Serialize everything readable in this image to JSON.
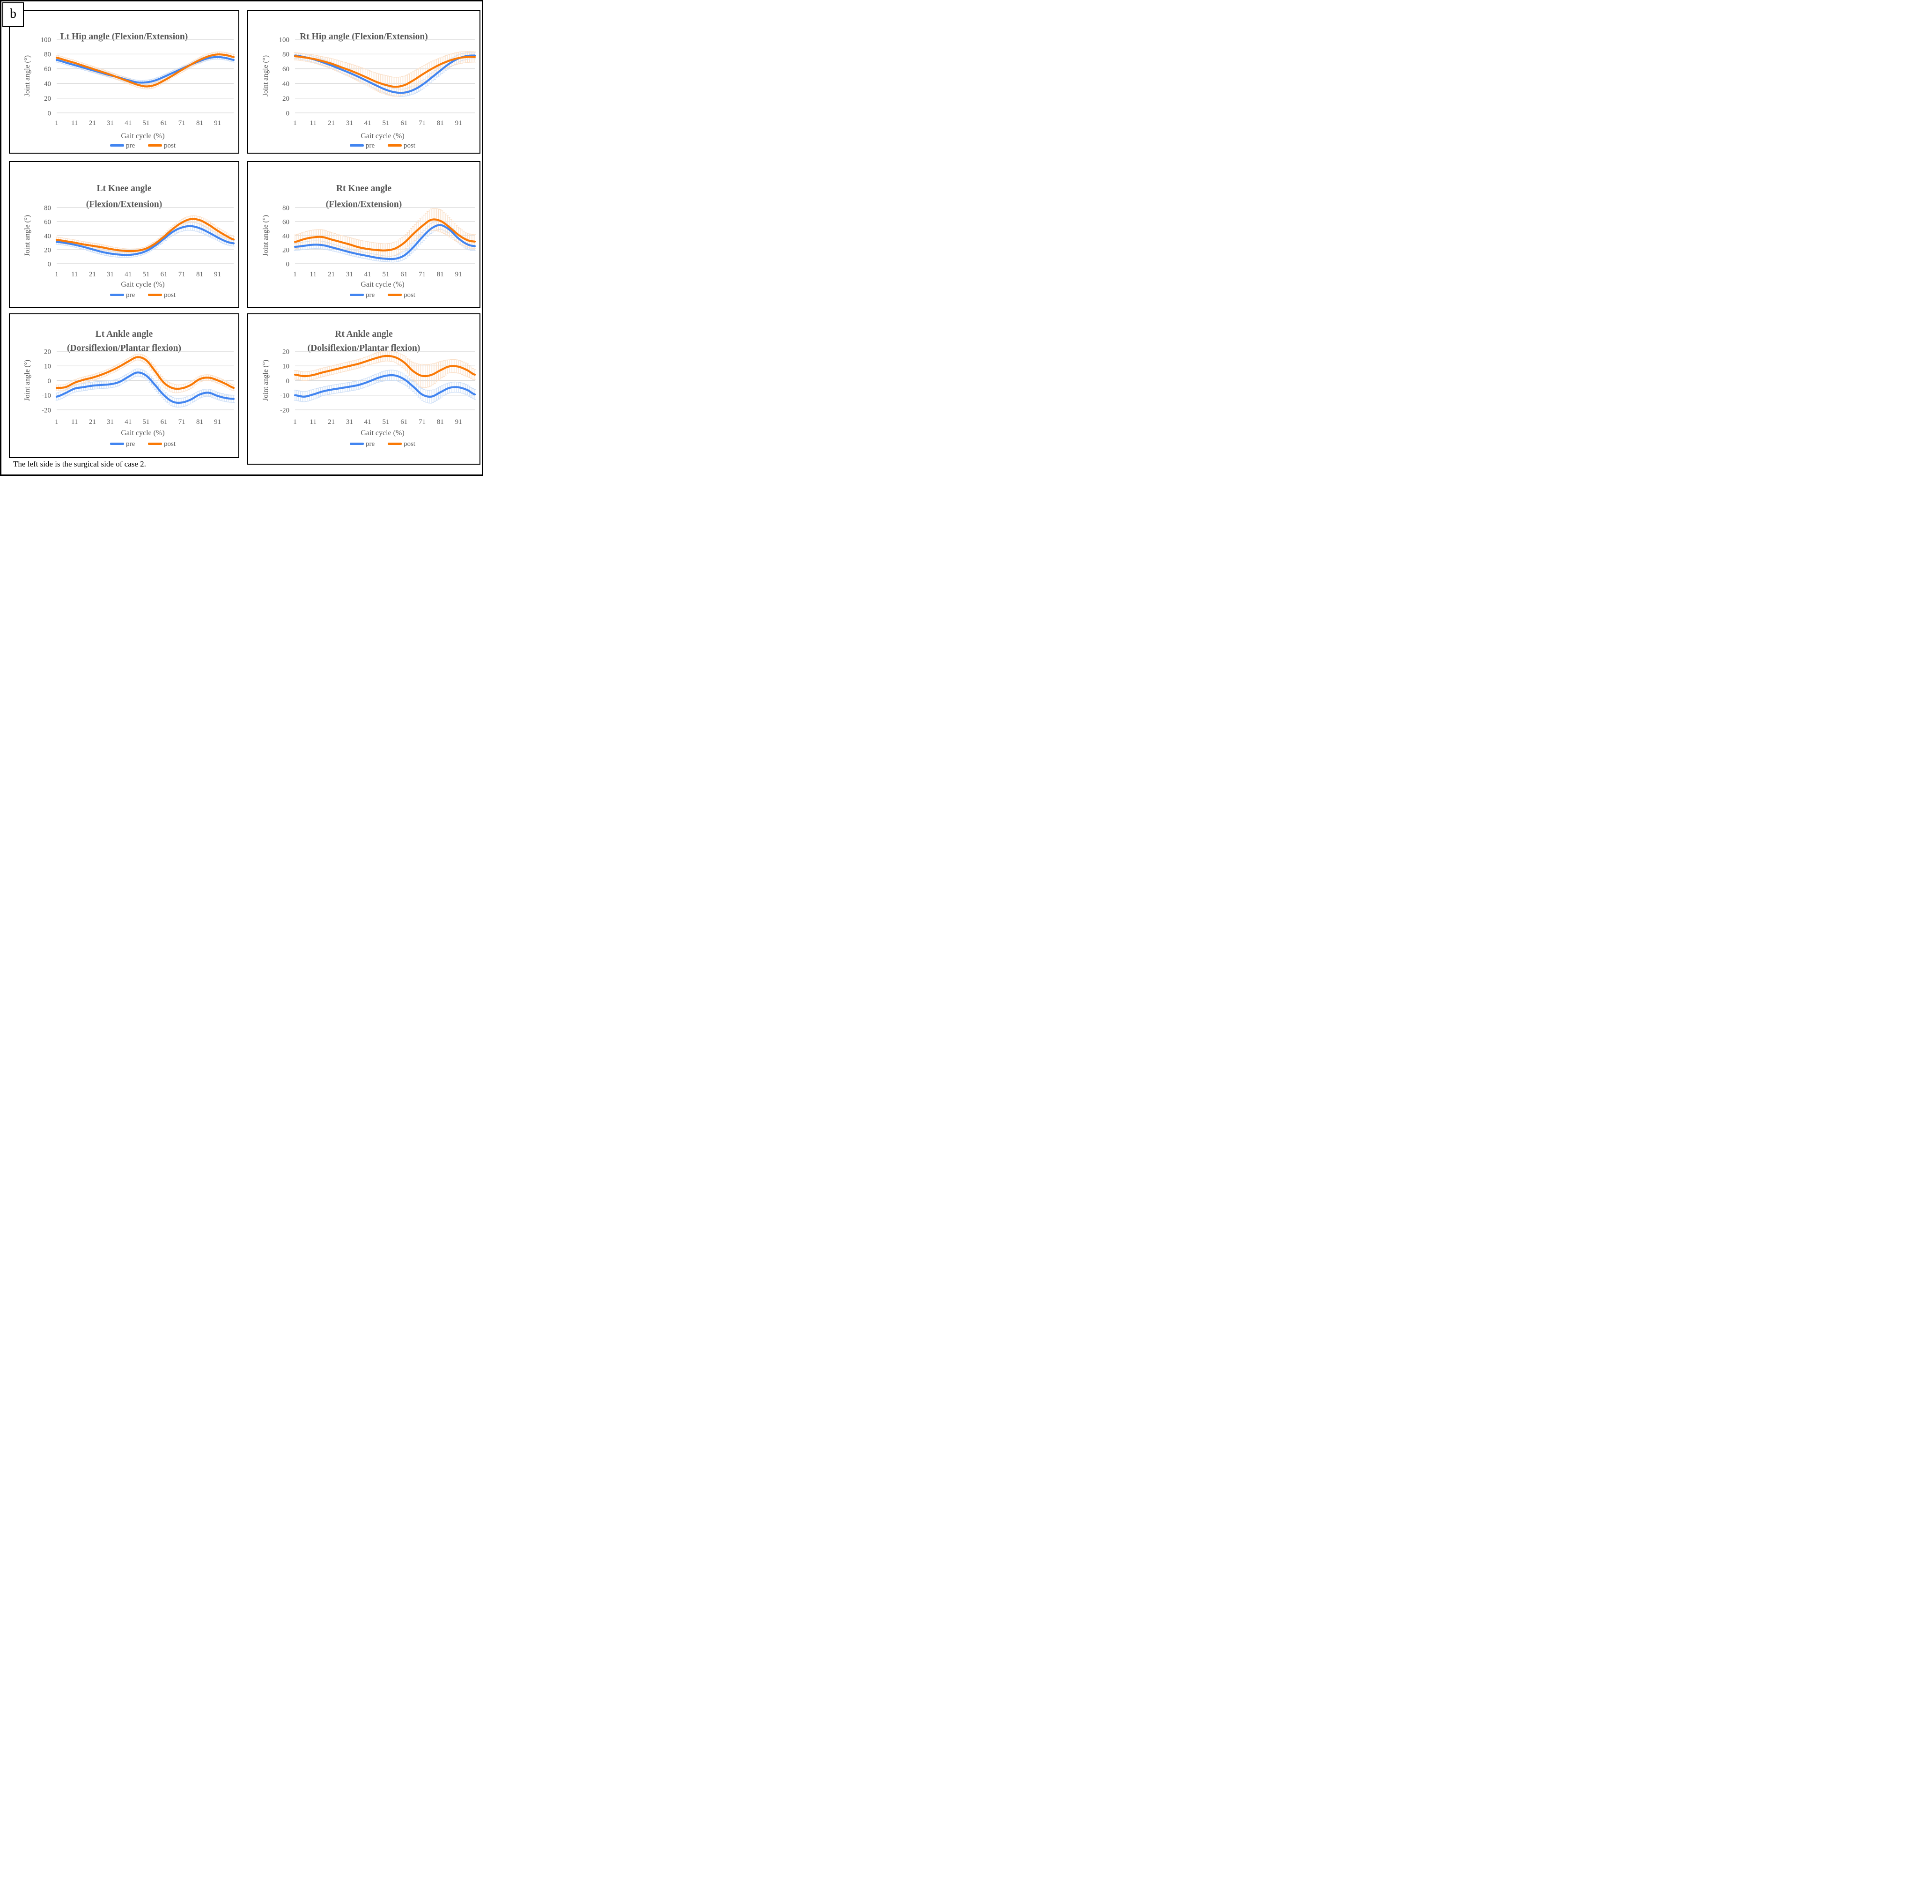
{
  "figure": {
    "label": "b",
    "caption": "The left side is the surgical side of case 2."
  },
  "colors": {
    "pre": "#4285F0",
    "post": "#F97906",
    "pre_band": "#CCDEF6",
    "post_band": "#FADFC7",
    "grid": "#D8D8D8",
    "text_gray": "#595959"
  },
  "chart_data": [
    {
      "type": "line",
      "title_lines": [
        "Lt Hip angle (Flexion/Extension)"
      ],
      "ylabel": "Joint angle (°)",
      "xlabel": "Gait cycle (%)",
      "ylim": [
        0,
        100
      ],
      "yticks": [
        0,
        20,
        40,
        60,
        80,
        100
      ],
      "xlim": [
        1,
        100
      ],
      "xticks": [
        1,
        11,
        21,
        31,
        41,
        51,
        61,
        71,
        81,
        91
      ],
      "x": [
        1,
        6,
        11,
        16,
        21,
        26,
        31,
        36,
        41,
        46,
        51,
        56,
        61,
        66,
        71,
        76,
        81,
        86,
        91,
        96,
        100
      ],
      "series": [
        {
          "name": "pre",
          "values": [
            72,
            68.5,
            65,
            61.5,
            58,
            54.5,
            51,
            48,
            44.5,
            41.5,
            41.5,
            44,
            49,
            54.5,
            60,
            65.5,
            70.5,
            74.5,
            76,
            74.5,
            72
          ],
          "sd": 3
        },
        {
          "name": "post",
          "values": [
            75,
            71.5,
            68,
            64,
            60,
            56,
            52,
            47.5,
            43,
            38.5,
            36,
            38,
            44,
            51,
            58.5,
            65.5,
            72,
            77,
            79.5,
            78.5,
            76
          ],
          "sd": 3.5
        }
      ],
      "legend_position": "bottom"
    },
    {
      "type": "line",
      "title_lines": [
        "Rt Hip angle (Flexion/Extension)"
      ],
      "ylabel": "Joint angle (°)",
      "xlabel": "Gait cycle (%)",
      "ylim": [
        0,
        100
      ],
      "yticks": [
        0,
        20,
        40,
        60,
        80,
        100
      ],
      "xlim": [
        1,
        100
      ],
      "xticks": [
        1,
        11,
        21,
        31,
        41,
        51,
        61,
        71,
        81,
        91
      ],
      "x": [
        1,
        6,
        11,
        16,
        21,
        26,
        31,
        36,
        41,
        46,
        51,
        56,
        61,
        66,
        71,
        76,
        81,
        86,
        91,
        96,
        100
      ],
      "series": [
        {
          "name": "pre",
          "values": [
            78,
            76,
            73,
            69,
            64.5,
            59.5,
            54.5,
            49,
            43,
            37,
            31.5,
            28,
            27.5,
            31,
            38,
            47.5,
            57.5,
            67,
            74,
            77.5,
            78
          ],
          "sd": [
            4,
            4,
            4,
            4,
            4,
            4,
            4.5,
            4.5,
            5,
            5,
            5,
            5,
            5,
            5.5,
            6,
            6,
            6,
            6,
            5,
            4.5,
            4.5
          ]
        },
        {
          "name": "post",
          "values": [
            77,
            75.5,
            73.5,
            70.5,
            67,
            62.5,
            58,
            53,
            47.5,
            42,
            38,
            35.5,
            37.5,
            44,
            52,
            59.5,
            66,
            71,
            74.5,
            76,
            76
          ],
          "sd": [
            5,
            5,
            5.5,
            6,
            7,
            8,
            9,
            10,
            11,
            12,
            13,
            13,
            12.5,
            12,
            11,
            10,
            9,
            8.5,
            8,
            7.5,
            7
          ]
        }
      ],
      "legend_position": "bottom"
    },
    {
      "type": "line",
      "title_lines": [
        "Lt Knee angle",
        "(Flexion/Extension)"
      ],
      "ylabel": "Joint angle (°)",
      "xlabel": "Gait cycle (%)",
      "ylim": [
        0,
        80
      ],
      "yticks": [
        0,
        20,
        40,
        60,
        80
      ],
      "xlim": [
        1,
        100
      ],
      "xticks": [
        1,
        11,
        21,
        31,
        41,
        51,
        61,
        71,
        81,
        91
      ],
      "x": [
        1,
        6,
        11,
        16,
        21,
        26,
        31,
        36,
        41,
        46,
        51,
        56,
        61,
        66,
        71,
        76,
        81,
        86,
        91,
        96,
        100
      ],
      "series": [
        {
          "name": "pre",
          "values": [
            31,
            29.5,
            27,
            24,
            20.5,
            17,
            14.5,
            13,
            12.5,
            14,
            18,
            25.5,
            35.5,
            45.5,
            51.5,
            53.5,
            50.5,
            44.5,
            37.5,
            31.5,
            29
          ],
          "sd": [
            3.5,
            3.5,
            3.5,
            3.5,
            4,
            4,
            4,
            4,
            3.5,
            3.5,
            3.5,
            4,
            4.5,
            5,
            5.5,
            6,
            6,
            5.5,
            5,
            4.5,
            4
          ]
        },
        {
          "name": "post",
          "values": [
            34,
            32,
            30,
            27.5,
            25.5,
            23.5,
            21,
            19,
            18,
            18.5,
            21.5,
            28.5,
            38.5,
            49.5,
            58.5,
            63.5,
            62,
            55.5,
            47,
            39.5,
            34.5
          ],
          "sd": [
            4,
            4,
            4,
            4,
            4,
            4,
            3.5,
            3.5,
            3,
            3,
            3,
            3.5,
            4,
            4.5,
            4.5,
            4.5,
            5,
            5.5,
            5,
            4.5,
            4.5
          ]
        }
      ],
      "legend_position": "bottom"
    },
    {
      "type": "line",
      "title_lines": [
        "Rt Knee angle",
        "(Flexion/Extension)"
      ],
      "ylabel": "Joint angle (°)",
      "xlabel": "Gait cycle (%)",
      "ylim": [
        0,
        80
      ],
      "yticks": [
        0,
        20,
        40,
        60,
        80
      ],
      "xlim": [
        1,
        100
      ],
      "xticks": [
        1,
        11,
        21,
        31,
        41,
        51,
        61,
        71,
        81,
        91
      ],
      "x": [
        1,
        6,
        11,
        16,
        21,
        26,
        31,
        36,
        41,
        46,
        51,
        56,
        61,
        66,
        71,
        76,
        81,
        86,
        91,
        96,
        100
      ],
      "series": [
        {
          "name": "pre",
          "values": [
            24,
            25.5,
            27,
            26.5,
            23.5,
            20,
            16.5,
            13.5,
            11,
            8.5,
            7,
            7,
            11.5,
            23,
            37.5,
            50,
            55,
            48.5,
            36,
            27.5,
            25
          ],
          "sd": [
            5,
            5.5,
            5.5,
            5.5,
            5,
            4.5,
            4.5,
            4.5,
            4.5,
            4.5,
            4,
            4.5,
            5.5,
            6.5,
            7,
            7,
            6,
            6,
            6.5,
            7,
            6.5
          ]
        },
        {
          "name": "post",
          "values": [
            31,
            35,
            37.5,
            38,
            34.5,
            31,
            27.5,
            23.5,
            21,
            19.5,
            19,
            21.5,
            29.5,
            42,
            53.5,
            62.5,
            61,
            52,
            41,
            33.5,
            31.5
          ],
          "sd": [
            10,
            10,
            10.5,
            10.5,
            10,
            9.5,
            10,
            10.5,
            10.5,
            10,
            9.5,
            9.5,
            10,
            11,
            13,
            15.5,
            16,
            14,
            11,
            10,
            10
          ]
        }
      ],
      "legend_position": "bottom"
    },
    {
      "type": "line",
      "title_lines": [
        "Lt Ankle angle",
        "(Dorsiflexion/Plantar flexion)"
      ],
      "ylabel": "Joint angle (°)",
      "xlabel": "Gait cycle (%)",
      "ylim": [
        -20,
        20
      ],
      "yticks": [
        -20,
        -10,
        0,
        10,
        20
      ],
      "xlim": [
        1,
        100
      ],
      "xticks": [
        1,
        11,
        21,
        31,
        41,
        51,
        61,
        71,
        81,
        91
      ],
      "x": [
        1,
        6,
        11,
        16,
        21,
        26,
        31,
        36,
        41,
        46,
        51,
        56,
        61,
        66,
        71,
        76,
        81,
        86,
        91,
        96,
        100
      ],
      "series": [
        {
          "name": "pre",
          "values": [
            -11,
            -8.5,
            -5.5,
            -4.5,
            -3.5,
            -3,
            -2.5,
            -1,
            2.5,
            5.5,
            3.5,
            -3,
            -10,
            -14.5,
            -15,
            -13,
            -9.5,
            -8.3,
            -10.5,
            -12,
            -12.5
          ],
          "sd": [
            2.5,
            2.5,
            2.5,
            2.5,
            2.5,
            2.5,
            2.5,
            2.5,
            2.5,
            2.5,
            2.5,
            3,
            3,
            3,
            3,
            3,
            2.5,
            2.5,
            2.5,
            2.5,
            2.5
          ]
        },
        {
          "name": "post",
          "values": [
            -5,
            -4.5,
            -1.5,
            0.5,
            2,
            4,
            6.5,
            9.5,
            13,
            16,
            14,
            6.5,
            -1.5,
            -5.2,
            -5.3,
            -3,
            1,
            2,
            0.2,
            -2.5,
            -5
          ],
          "sd": [
            2,
            2,
            2,
            2,
            2,
            2,
            2,
            2,
            2,
            2,
            2.5,
            3,
            3,
            3,
            2.5,
            2.5,
            2,
            2,
            2,
            2,
            2
          ]
        }
      ],
      "legend_position": "bottom"
    },
    {
      "type": "line",
      "title_lines": [
        "Rt Ankle angle",
        "(Dolsiflexion/Plantar flexion)"
      ],
      "ylabel": "Joint angle (°)",
      "xlabel": "Gait cycle (%)",
      "ylim": [
        -20,
        20
      ],
      "yticks": [
        -20,
        -10,
        0,
        10,
        20
      ],
      "xlim": [
        1,
        100
      ],
      "xticks": [
        1,
        11,
        21,
        31,
        41,
        51,
        61,
        71,
        81,
        91
      ],
      "x": [
        1,
        6,
        11,
        16,
        21,
        26,
        31,
        36,
        41,
        46,
        51,
        56,
        61,
        66,
        71,
        76,
        81,
        86,
        91,
        96,
        100
      ],
      "series": [
        {
          "name": "pre",
          "values": [
            -10,
            -11,
            -9.5,
            -7.5,
            -6.2,
            -5.2,
            -4.2,
            -3,
            -1,
            1.5,
            3.3,
            3.5,
            1,
            -4,
            -9.5,
            -11,
            -8,
            -5,
            -4.6,
            -6.5,
            -9.5
          ],
          "sd": [
            3.5,
            3.5,
            3.5,
            3,
            3,
            3,
            3,
            3,
            3,
            3,
            3.5,
            3.5,
            3.5,
            3.5,
            4,
            4.5,
            4,
            3.5,
            3.5,
            3.5,
            3.5
          ]
        },
        {
          "name": "post",
          "values": [
            4,
            3,
            3.8,
            5.5,
            7,
            8.5,
            10,
            11.5,
            13.5,
            15.5,
            16.8,
            16,
            12.5,
            6.5,
            3.2,
            3.8,
            7,
            9.7,
            9.5,
            7,
            4
          ],
          "sd": [
            3,
            3,
            3,
            3,
            3,
            3,
            3,
            3,
            3,
            3.5,
            3.5,
            3.5,
            4.5,
            6,
            8,
            7.5,
            6,
            4.5,
            4.5,
            4.5,
            3.5
          ]
        }
      ],
      "legend_position": "bottom"
    }
  ]
}
